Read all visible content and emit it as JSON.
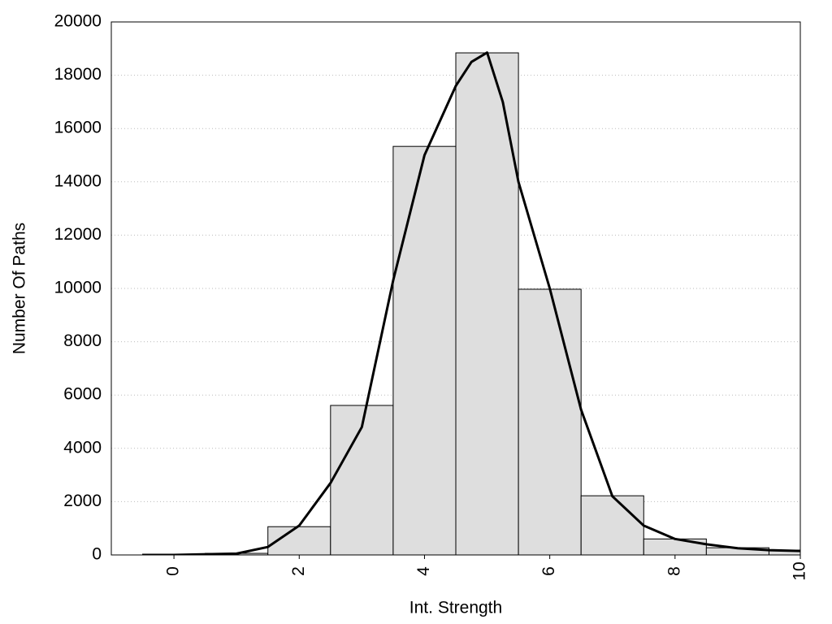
{
  "chart_data": {
    "type": "histogram",
    "xlabel": "Int. Strength",
    "ylabel": "Number Of Paths",
    "bins": [
      -0.5,
      0.5,
      1.5,
      2.5,
      3.5,
      4.5,
      5.5,
      6.5,
      7.5,
      8.5,
      9.5,
      10.5
    ],
    "values": [
      30,
      60,
      1060,
      5610,
      15330,
      18840,
      9970,
      2220,
      600,
      270,
      180
    ],
    "color": "#dedede",
    "xlim": [
      -1,
      10
    ],
    "xticks": [
      0,
      2,
      4,
      6,
      8,
      10
    ],
    "ylim": [
      0,
      20000
    ],
    "yticks": [
      0,
      2000,
      4000,
      6000,
      8000,
      10000,
      12000,
      14000,
      16000,
      18000,
      20000
    ],
    "grid": true,
    "curve": {
      "type": "line",
      "color": "#000000",
      "x": [
        0,
        1,
        1.5,
        2,
        2.5,
        3,
        3.5,
        4,
        4.5,
        4.75,
        5,
        5.25,
        5.5,
        6,
        6.5,
        7,
        7.5,
        8,
        8.5,
        9,
        9.5,
        10
      ],
      "values": [
        0,
        50,
        300,
        1100,
        2700,
        4800,
        10300,
        15000,
        17600,
        18500,
        18850,
        17000,
        14000,
        10000,
        5450,
        2200,
        1100,
        600,
        400,
        250,
        180,
        150
      ]
    }
  }
}
